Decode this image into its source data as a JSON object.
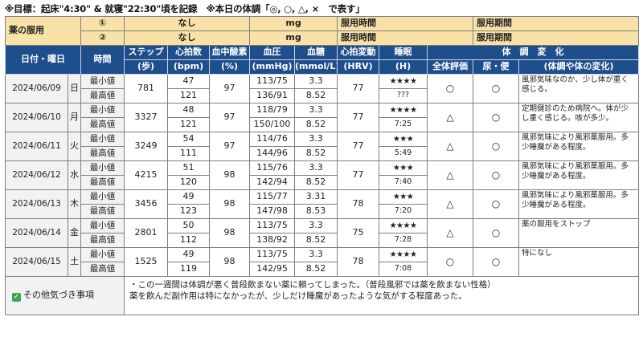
{
  "note": "※目標：起床\"4:30\" & 就寝\"22:30\"頃を記録　※本日の体調「◎, ○, △, ×　で表す」",
  "medicine": {
    "label": "薬の服用",
    "rows": [
      {
        "num": "①",
        "name": "なし",
        "unit": "mg",
        "time_label": "服用時間",
        "period_label": "服用期間"
      },
      {
        "num": "②",
        "name": "なし",
        "unit": "mg",
        "time_label": "服用時間",
        "period_label": "服用期間"
      }
    ]
  },
  "headers": {
    "date": "日付・曜日",
    "time": "時間",
    "steps_1": "ステップ",
    "steps_2": "(歩)",
    "hr_1": "心拍数",
    "hr_2": "(bpm)",
    "spo2_1": "血中酸素",
    "spo2_2": "(%)",
    "bp_1": "血圧",
    "bp_2": "(mmHg)",
    "glucose_1": "血糖",
    "glucose_2": "(mmol/L)",
    "hrv_1": "心拍変動",
    "hrv_2": "(HRV)",
    "sleep_1": "睡眠",
    "sleep_2": "(H)",
    "condition_title": "体　調　変　化",
    "overall": "全体評価",
    "urine": "尿・便",
    "memo": "(体調や体の変化)"
  },
  "days": [
    {
      "date": "2024/06/09",
      "dow": "日",
      "min_label": "最小値",
      "max_label": "最高値",
      "steps": "781",
      "hr_min": "47",
      "hr_max": "121",
      "spo2": "97",
      "bp_min": "113/75",
      "bp_max": "136/91",
      "glu_min": "3.3",
      "glu_max": "8.52",
      "hrv": "77",
      "stars": "★★★★",
      "sleep": "???",
      "overall": "○",
      "urine": "○",
      "memo": "風邪気味なのか、少し体が重く感じる。"
    },
    {
      "date": "2024/06/10",
      "dow": "月",
      "min_label": "最小値",
      "max_label": "最高値",
      "steps": "3327",
      "hr_min": "48",
      "hr_max": "121",
      "spo2": "97",
      "bp_min": "118/79",
      "bp_max": "150/100",
      "glu_min": "3.3",
      "glu_max": "8.52",
      "hrv": "77",
      "stars": "★★★★",
      "sleep": "7:25",
      "overall": "△",
      "urine": "○",
      "memo": "定期健診のため病院へ。体が少し重く感じる。咳が多少。"
    },
    {
      "date": "2024/06/11",
      "dow": "火",
      "min_label": "最小値",
      "max_label": "最高値",
      "steps": "3249",
      "hr_min": "54",
      "hr_max": "111",
      "spo2": "97",
      "bp_min": "114/76",
      "bp_max": "144/96",
      "glu_min": "3.3",
      "glu_max": "8.52",
      "hrv": "77",
      "stars": "★★★",
      "sleep": "5:49",
      "overall": "△",
      "urine": "○",
      "memo": "風邪気味により風邪薬服用。多少睡魔がある程度。"
    },
    {
      "date": "2024/06/12",
      "dow": "水",
      "min_label": "最小値",
      "max_label": "最高値",
      "steps": "4215",
      "hr_min": "51",
      "hr_max": "120",
      "spo2": "98",
      "bp_min": "115/76",
      "bp_max": "142/94",
      "glu_min": "3.3",
      "glu_max": "8.52",
      "hrv": "77",
      "stars": "★★★",
      "sleep": "7:40",
      "overall": "△",
      "urine": "○",
      "memo": "風邪気味により風邪薬服用。多少睡魔がある程度。"
    },
    {
      "date": "2024/06/13",
      "dow": "木",
      "min_label": "最小値",
      "max_label": "最高値",
      "steps": "3456",
      "hr_min": "49",
      "hr_max": "123",
      "spo2": "98",
      "bp_min": "115/77",
      "bp_max": "147/98",
      "glu_min": "3.31",
      "glu_max": "8.53",
      "hrv": "78",
      "stars": "★★★",
      "sleep": "7:20",
      "overall": "△",
      "urine": "○",
      "memo": "風邪気味により風邪薬服用。多少睡魔がある程度。"
    },
    {
      "date": "2024/06/14",
      "dow": "金",
      "min_label": "最小値",
      "max_label": "最高値",
      "steps": "2801",
      "hr_min": "50",
      "hr_max": "112",
      "spo2": "98",
      "bp_min": "113/75",
      "bp_max": "138/92",
      "glu_min": "3.3",
      "glu_max": "8.52",
      "hrv": "75",
      "stars": "★★★★",
      "sleep": "7:28",
      "overall": "△",
      "urine": "○",
      "memo": "薬の服用をストップ"
    },
    {
      "date": "2024/06/15",
      "dow": "土",
      "min_label": "最小値",
      "max_label": "最高値",
      "steps": "1525",
      "hr_min": "49",
      "hr_max": "119",
      "spo2": "98",
      "bp_min": "113/75",
      "bp_max": "142/95",
      "glu_min": "3.3",
      "glu_max": "8.52",
      "hrv": "78",
      "stars": "★★★★",
      "sleep": "7:08",
      "overall": "○",
      "urine": "○",
      "memo": "特になし"
    }
  ],
  "other": {
    "check_icon": "check-box-icon",
    "accent": "#3aa657",
    "label": "その他気づき事項",
    "line1": "・この一週間は体調が悪く普段飲まない薬に頼ってしまった。（普段風邪では薬を飲まない性格）",
    "line2": "薬を飲んだ副作用は特になかったが、少しだけ睡魔があったような気がする程度あった。"
  },
  "colors": {
    "header_bg": "#1f4e8c",
    "medicine_bg": "#f8e2a8"
  }
}
